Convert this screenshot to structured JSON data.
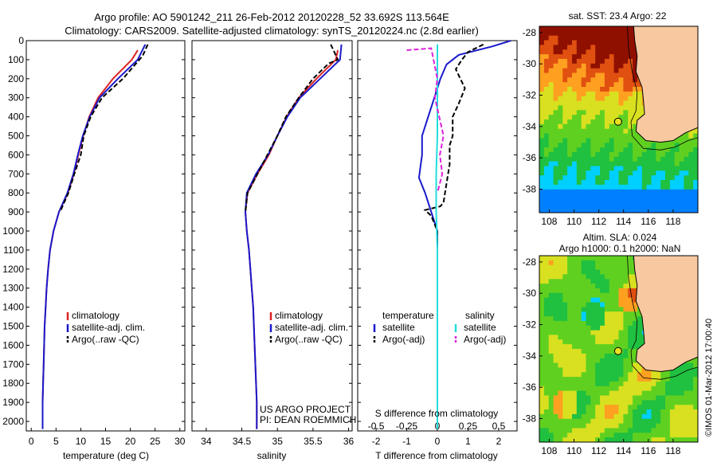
{
  "header": {
    "line1": "Argo profile: AO 5901242_211 26-Feb-2012 20120228_52 33.692S 113.564E",
    "line2": "Climatology: CARS2009. Satellite-adjusted climatology: synTS_20120224.nc (2.8d earlier)"
  },
  "colors": {
    "climatology": "#dd2222",
    "satellite": "#1a1acc",
    "argo": "#000000",
    "temp_sat_diff": "#1a1acc",
    "sal_sat_diff": "#22dddd",
    "sal_argo_diff": "#dd22dd",
    "land": "#f8c8a0"
  },
  "chart_data": [
    {
      "type": "line",
      "id": "temperature",
      "xlabel": "temperature (deg C)",
      "ylabel": "",
      "xlim": [
        -1,
        31
      ],
      "ylim": [
        2050,
        0
      ],
      "xticks": [
        "0",
        "5",
        "10",
        "15",
        "20",
        "25",
        "30"
      ],
      "yticks": [
        "0",
        "100",
        "200",
        "300",
        "400",
        "500",
        "600",
        "700",
        "800",
        "900",
        "1000",
        "1100",
        "1200",
        "1300",
        "1400",
        "1500",
        "1600",
        "1700",
        "1800",
        "1900",
        "2000"
      ],
      "legend": {
        "position": "center-left",
        "entries": [
          {
            "label": "climatology",
            "color": "#dd2222"
          },
          {
            "label": "satellite-adj. clim.",
            "color": "#1a1acc"
          },
          {
            "label": "Argo(..raw -QC)",
            "color": "#000000",
            "dash": true
          }
        ]
      },
      "series": [
        {
          "name": "climatology",
          "color": "#dd2222",
          "dash": false,
          "x": [
            21.5,
            20.3,
            16.5,
            13.5,
            11.7,
            10.5,
            9.5,
            8.6,
            7.4,
            5.6,
            4.5,
            3.8,
            3.4,
            3.1,
            2.9,
            2.7,
            2.6,
            2.5,
            2.4,
            2.3,
            2.3
          ],
          "y": [
            50,
            100,
            200,
            300,
            400,
            500,
            600,
            700,
            800,
            900,
            1000,
            1100,
            1200,
            1300,
            1400,
            1500,
            1600,
            1700,
            1800,
            1900,
            2040
          ]
        },
        {
          "name": "satellite-adj. clim.",
          "color": "#1a1acc",
          "dash": false,
          "x": [
            23.0,
            21.5,
            17.5,
            13.8,
            11.8,
            10.4,
            9.4,
            8.5,
            7.3,
            5.6,
            4.5,
            3.8,
            3.4,
            3.1,
            2.9,
            2.7,
            2.6,
            2.5,
            2.4,
            2.3,
            2.3
          ],
          "y": [
            20,
            100,
            200,
            300,
            400,
            500,
            600,
            700,
            800,
            900,
            1000,
            1100,
            1200,
            1300,
            1400,
            1500,
            1600,
            1700,
            1800,
            1900,
            2040
          ]
        },
        {
          "name": "Argo(..raw -QC)",
          "color": "#000000",
          "dash": true,
          "x": [
            23.5,
            22.5,
            18.5,
            14.3,
            12.0,
            10.6,
            10.0,
            8.7,
            7.5,
            5.8
          ],
          "y": [
            20,
            80,
            200,
            300,
            400,
            500,
            600,
            700,
            800,
            900
          ]
        }
      ]
    },
    {
      "type": "line",
      "id": "salinity",
      "xlabel": "salinity",
      "xlim": [
        33.8,
        36.05
      ],
      "ylim": [
        2050,
        0
      ],
      "xticks": [
        "34",
        "34.5",
        "35",
        "35.5",
        "36"
      ],
      "legend": {
        "position": "center-right",
        "entries": [
          {
            "label": "climatology",
            "color": "#dd2222"
          },
          {
            "label": "satellite-adj. clim.",
            "color": "#1a1acc"
          },
          {
            "label": "Argo(..raw -QC)",
            "color": "#000000",
            "dash": true
          }
        ]
      },
      "annotation": [
        "US ARGO PROJECT",
        "PI: DEAN ROEMMICH"
      ],
      "series": [
        {
          "name": "climatology",
          "color": "#dd2222",
          "dash": false,
          "x": [
            35.85,
            35.82,
            35.55,
            35.3,
            35.13,
            35.0,
            34.88,
            34.72,
            34.58,
            34.55,
            34.57,
            34.6,
            34.62,
            34.64,
            34.66,
            34.67,
            34.68,
            34.69,
            34.7,
            34.71,
            34.71
          ],
          "y": [
            50,
            100,
            200,
            300,
            400,
            500,
            600,
            700,
            800,
            900,
            1000,
            1100,
            1200,
            1300,
            1400,
            1500,
            1600,
            1700,
            1800,
            1900,
            2040
          ]
        },
        {
          "name": "satellite-adj. clim.",
          "color": "#1a1acc",
          "dash": false,
          "x": [
            35.9,
            35.88,
            35.6,
            35.32,
            35.14,
            35.0,
            34.87,
            34.7,
            34.57,
            34.55,
            34.57,
            34.6,
            34.62,
            34.64,
            34.66,
            34.67,
            34.68,
            34.69,
            34.7,
            34.71,
            34.71
          ],
          "y": [
            20,
            100,
            200,
            300,
            400,
            500,
            600,
            700,
            800,
            900,
            1000,
            1100,
            1200,
            1300,
            1400,
            1500,
            1600,
            1700,
            1800,
            1900,
            2040
          ]
        },
        {
          "name": "Argo(..raw -QC)",
          "color": "#000000",
          "dash": true,
          "x": [
            35.75,
            35.85,
            35.72,
            35.5,
            35.3,
            35.12,
            35.0,
            34.86,
            34.72,
            34.58,
            34.55
          ],
          "y": [
            20,
            100,
            120,
            200,
            300,
            400,
            500,
            600,
            700,
            800,
            900
          ]
        }
      ]
    },
    {
      "type": "line",
      "id": "difference",
      "xlabel": "T difference from climatology",
      "xlabel2": "S difference from climatology",
      "xlim": [
        -2.6,
        2.6
      ],
      "ylim": [
        2050,
        0
      ],
      "xticks": [
        "-2",
        "-1",
        "0",
        "1",
        "2"
      ],
      "xticks2": [
        "-0.5",
        "-0.25",
        "0",
        "0.25",
        "0.5"
      ],
      "legend": {
        "position": "center",
        "groups": [
          {
            "title": "temperature",
            "entries": [
              {
                "label": "satellite",
                "color": "#1a1acc"
              },
              {
                "label": "Argo(-adj)",
                "color": "#000000",
                "dash": true
              }
            ]
          },
          {
            "title": "salinity",
            "entries": [
              {
                "label": "satellite",
                "color": "#22dddd"
              },
              {
                "label": "Argo(-adj)",
                "color": "#dd22dd",
                "dash": true
              }
            ]
          }
        ]
      },
      "series": [
        {
          "name": "temperature satellite",
          "color": "#1a1acc",
          "dash": false,
          "x": [
            2.4,
            1.8,
            0.7,
            0.3,
            0.1,
            -0.1,
            -0.3,
            -0.5,
            -0.5,
            -0.6,
            -0.4,
            -0.2,
            0.0,
            0.0,
            0.0,
            0.0,
            0.0,
            0.0
          ],
          "y": [
            0,
            30,
            75,
            125,
            200,
            300,
            400,
            500,
            600,
            720,
            800,
            900,
            1000,
            1200,
            1400,
            1600,
            1800,
            1700
          ]
        },
        {
          "name": "temperature Argo(-adj)",
          "color": "#000000",
          "dash": true,
          "x": [
            1.5,
            1.0,
            0.8,
            0.6,
            0.9,
            0.7,
            0.5,
            0.5,
            0.4,
            0.4,
            0.3,
            0.2,
            0.1,
            -0.4,
            -0.2,
            0.0,
            0.0,
            0.0
          ],
          "y": [
            20,
            60,
            100,
            150,
            250,
            330,
            400,
            500,
            550,
            650,
            750,
            850,
            870,
            890,
            920,
            1000,
            1200,
            1300
          ]
        },
        {
          "name": "salinity satellite",
          "color": "#22dddd",
          "dash": false,
          "x": [
            0.0,
            0.0,
            0.0,
            -0.01,
            -0.01,
            0.0,
            0.0,
            0.0,
            0.0,
            0.0
          ],
          "y": [
            20,
            200,
            500,
            700,
            900,
            1100,
            1400,
            1700,
            1900,
            2040
          ]
        },
        {
          "name": "salinity Argo(-adj)",
          "color": "#dd22dd",
          "dash": true,
          "x": [
            -0.25,
            -0.05,
            0.0,
            -0.02,
            0.05,
            0.02,
            0.04,
            0.0
          ],
          "y": [
            50,
            40,
            200,
            300,
            500,
            600,
            700,
            800
          ]
        }
      ]
    },
    {
      "type": "heatmap",
      "id": "sst_map",
      "title": "sat. SST: 23.4  Argo: 22",
      "xlim": [
        107.2,
        120
      ],
      "ylim": [
        -39.5,
        -27.6
      ],
      "xticks": [
        "108",
        "110",
        "112",
        "114",
        "116",
        "118"
      ],
      "yticks": [
        "-28",
        "-30",
        "-32",
        "-34",
        "-36",
        "-38"
      ],
      "point": {
        "lon": 113.56,
        "lat": -33.69
      }
    },
    {
      "type": "heatmap",
      "id": "sla_map",
      "title": "Altim. SLA: 0.024",
      "title2": "Argo h1000: 0.1 h2000: NaN",
      "xlim": [
        107.2,
        120
      ],
      "ylim": [
        -39.5,
        -27.6
      ],
      "xticks": [
        "108",
        "110",
        "112",
        "114",
        "116",
        "118"
      ],
      "yticks": [
        "-28",
        "-30",
        "-32",
        "-34",
        "-36",
        "-38"
      ],
      "point": {
        "lon": 113.56,
        "lat": -33.69
      }
    }
  ],
  "credit": "©IMOS 01-Mar-2012 17:00:40"
}
